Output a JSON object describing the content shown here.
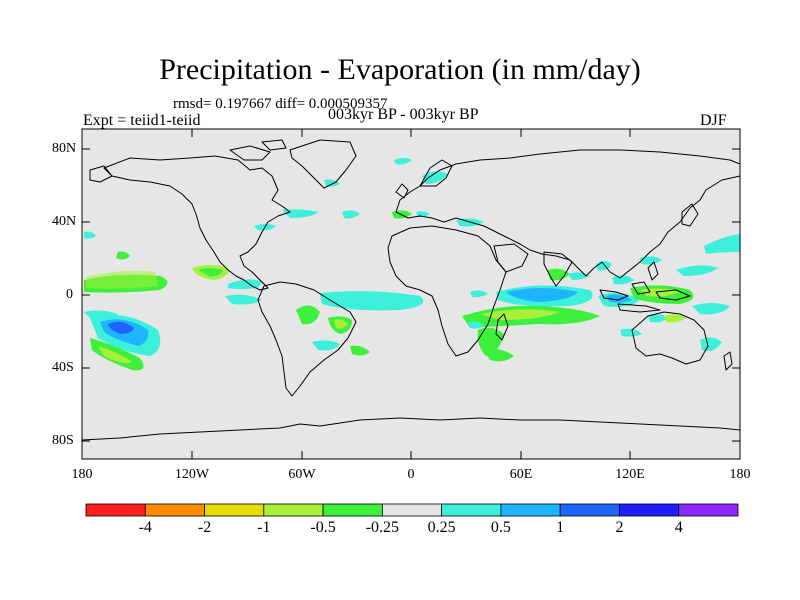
{
  "title": "Precipitation - Evaporation (in mm/day)",
  "stats_text": "rmsd= 0.197667 diff= 0.000509357",
  "period_text": "003kyr BP - 003kyr BP",
  "experiment_text": "Expt = teiid1-teiid",
  "season_text": "DJF",
  "lat_labels": [
    "80N",
    "40N",
    "0",
    "40S",
    "80S"
  ],
  "lon_labels": [
    "180",
    "120W",
    "60W",
    "0",
    "60E",
    "120E",
    "180"
  ],
  "colorbar": {
    "colors": [
      "#ff1f1f",
      "#ff8c00",
      "#e6dc00",
      "#a8f03c",
      "#3cf03c",
      "#e6e6e6",
      "#3cf0dc",
      "#1eb4ff",
      "#1e64ff",
      "#1e1eff",
      "#8c28ff"
    ],
    "labels": [
      "-4",
      "-2",
      "-1",
      "-0.5",
      "-0.25",
      "0.25",
      "0.5",
      "1",
      "2",
      "4"
    ]
  },
  "map_background": "#e6e6e6"
}
